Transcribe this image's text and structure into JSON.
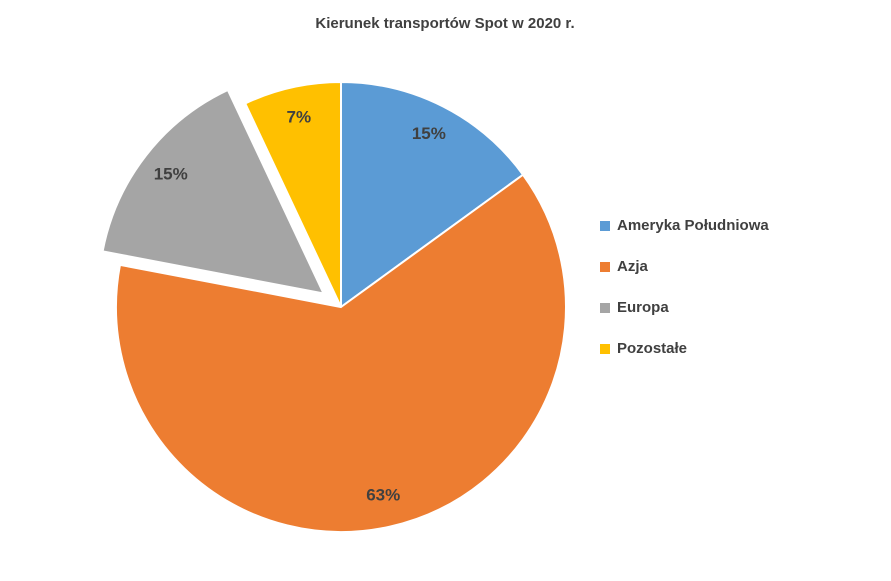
{
  "chart_data": {
    "type": "pie",
    "title": "Kierunek transportów Spot w 2020 r.",
    "categories": [
      "Ameryka Południowa",
      "Azja",
      "Europa",
      "Pozostałe"
    ],
    "values": [
      15,
      63,
      15,
      7
    ],
    "value_labels": [
      "15%",
      "63%",
      "15%",
      "7%"
    ],
    "colors": [
      "#5b9bd5",
      "#ed7d31",
      "#a5a5a5",
      "#ffc000"
    ],
    "legend": "right"
  }
}
